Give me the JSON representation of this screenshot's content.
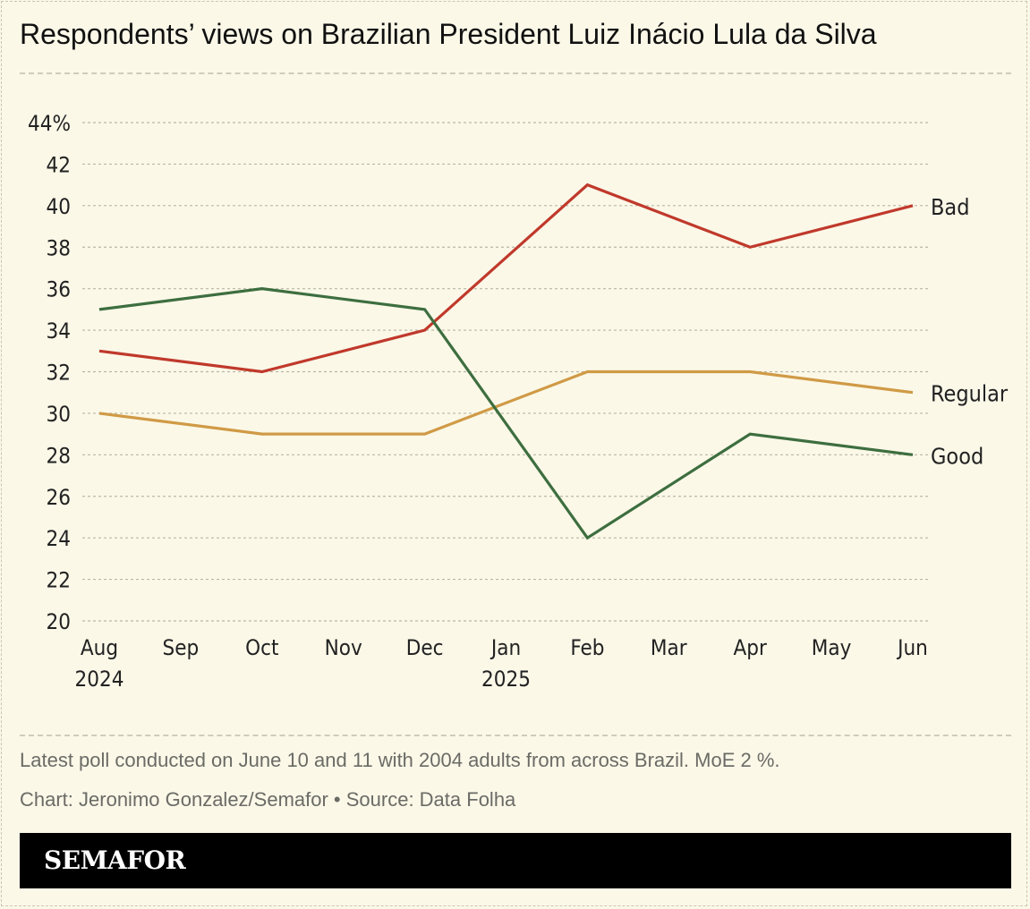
{
  "title": "Respondents’ views on Brazilian President Luiz Inácio Lula da Silva",
  "chart_data": {
    "type": "line",
    "categories": [
      "Aug",
      "Sep",
      "Oct",
      "Nov",
      "Dec",
      "Jan",
      "Feb",
      "Mar",
      "Apr",
      "May",
      "Jun"
    ],
    "year_labels": [
      {
        "category": "Aug",
        "label": "2024"
      },
      {
        "category": "Jan",
        "label": "2025"
      }
    ],
    "y_ticks": [
      "20",
      "22",
      "24",
      "26",
      "28",
      "30",
      "32",
      "34",
      "36",
      "38",
      "40",
      "42",
      "44%"
    ],
    "ylim": [
      20,
      44
    ],
    "grid": true,
    "series": [
      {
        "name": "Bad",
        "color": "#c0392b",
        "points": [
          {
            "x": "Aug",
            "y": 33
          },
          {
            "x": "Oct",
            "y": 32
          },
          {
            "x": "Dec",
            "y": 34
          },
          {
            "x": "Feb",
            "y": 41
          },
          {
            "x": "Apr",
            "y": 38
          },
          {
            "x": "Jun",
            "y": 40
          }
        ]
      },
      {
        "name": "Regular",
        "color": "#d09a45",
        "points": [
          {
            "x": "Aug",
            "y": 30
          },
          {
            "x": "Oct",
            "y": 29
          },
          {
            "x": "Dec",
            "y": 29
          },
          {
            "x": "Feb",
            "y": 32
          },
          {
            "x": "Apr",
            "y": 32
          },
          {
            "x": "Jun",
            "y": 31
          }
        ]
      },
      {
        "name": "Good",
        "color": "#3d6e3f",
        "points": [
          {
            "x": "Aug",
            "y": 35
          },
          {
            "x": "Oct",
            "y": 36
          },
          {
            "x": "Dec",
            "y": 35
          },
          {
            "x": "Feb",
            "y": 24
          },
          {
            "x": "Apr",
            "y": 29
          },
          {
            "x": "Jun",
            "y": 28
          }
        ]
      }
    ]
  },
  "footer": {
    "note": "Latest poll conducted on June 10 and 11 with 2004 adults from across Brazil. MoE 2 %.",
    "credit": "Chart: Jeronimo Gonzalez/Semafor • Source: Data Folha",
    "brand": "SEMAFOR"
  }
}
